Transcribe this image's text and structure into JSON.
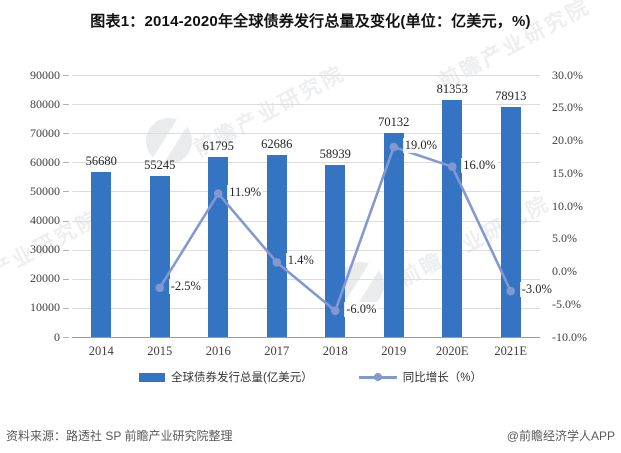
{
  "title": "图表1：2014-2020年全球债券发行总量及变化(单位：亿美元，%)",
  "chart_data": {
    "type": "bar",
    "title": "图表1：2014-2020年全球债券发行总量及变化(单位：亿美元，%)",
    "categories": [
      "2014",
      "2015",
      "2016",
      "2017",
      "2018",
      "2019",
      "2020E",
      "2021E"
    ],
    "series": [
      {
        "name": "全球债券发行总量(亿美元）",
        "type": "bar",
        "axis": "left",
        "values": [
          56680,
          55245,
          61795,
          62686,
          58939,
          70132,
          81353,
          78913
        ],
        "point_labels": [
          "56680",
          "55245",
          "61795",
          "62686",
          "58939",
          "70132",
          "81353",
          "78913"
        ]
      },
      {
        "name": "同比增长（%）",
        "type": "line",
        "axis": "right",
        "values": [
          null,
          -2.5,
          11.9,
          1.4,
          -6.0,
          19.0,
          16.0,
          -3.0
        ],
        "point_labels": [
          "",
          "-2.5%",
          "11.9%",
          "1.4%",
          "-6.0%",
          "19.0%",
          "16.0%",
          "-3.0%"
        ]
      }
    ],
    "left_axis": {
      "min": 0,
      "max": 90000,
      "tick_labels": [
        "0",
        "10000",
        "20000",
        "30000",
        "40000",
        "50000",
        "60000",
        "70000",
        "80000",
        "90000"
      ]
    },
    "right_axis": {
      "min": -10,
      "max": 30,
      "tick_labels": [
        "-10.0%",
        "-5.0%",
        "0.0%",
        "5.0%",
        "10.0%",
        "15.0%",
        "20.0%",
        "25.0%",
        "30.0%"
      ]
    },
    "grid": true,
    "legend_position": "bottom"
  },
  "legend": {
    "bar_label": "全球债券发行总量(亿美元）",
    "line_label": "同比增长（%）"
  },
  "footer": {
    "source": "资料来源：路透社 SP 前瞻产业研究院整理",
    "credit": "@前瞻经济学人APP"
  },
  "watermark": {
    "text": "前瞻产业研究院"
  },
  "colors": {
    "bar": "#3474C2",
    "line": "#8398D1",
    "grid": "#DCDCDC",
    "axis_text": "#404040",
    "title_text": "#111111",
    "footer_text": "#595959"
  }
}
